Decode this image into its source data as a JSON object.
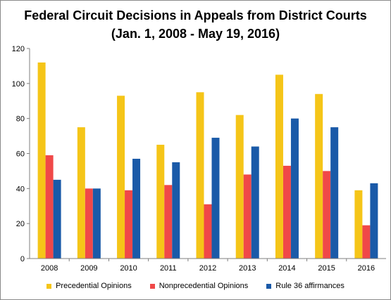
{
  "chart_data": {
    "type": "bar",
    "title_lines": [
      "Federal Circuit Decisions in Appeals from District Courts",
      "(Jan. 1, 2008 - May 19, 2016)"
    ],
    "categories": [
      "2008",
      "2009",
      "2010",
      "2011",
      "2012",
      "2013",
      "2014",
      "2015",
      "2016"
    ],
    "series": [
      {
        "name": "Precedential Opinions",
        "color": "#f5c518",
        "values": [
          112,
          75,
          93,
          65,
          95,
          82,
          105,
          94,
          39
        ]
      },
      {
        "name": "Nonprecedential Opinions",
        "color": "#f04848",
        "values": [
          59,
          40,
          39,
          42,
          31,
          48,
          53,
          50,
          19
        ]
      },
      {
        "name": "Rule 36 affirmances",
        "color": "#1a5aa8",
        "values": [
          45,
          40,
          57,
          55,
          69,
          64,
          80,
          75,
          43
        ]
      }
    ],
    "ylim": [
      0,
      120
    ],
    "yticks": [
      0,
      20,
      40,
      60,
      80,
      100,
      120
    ],
    "grid": false,
    "legend_position": "bottom"
  }
}
